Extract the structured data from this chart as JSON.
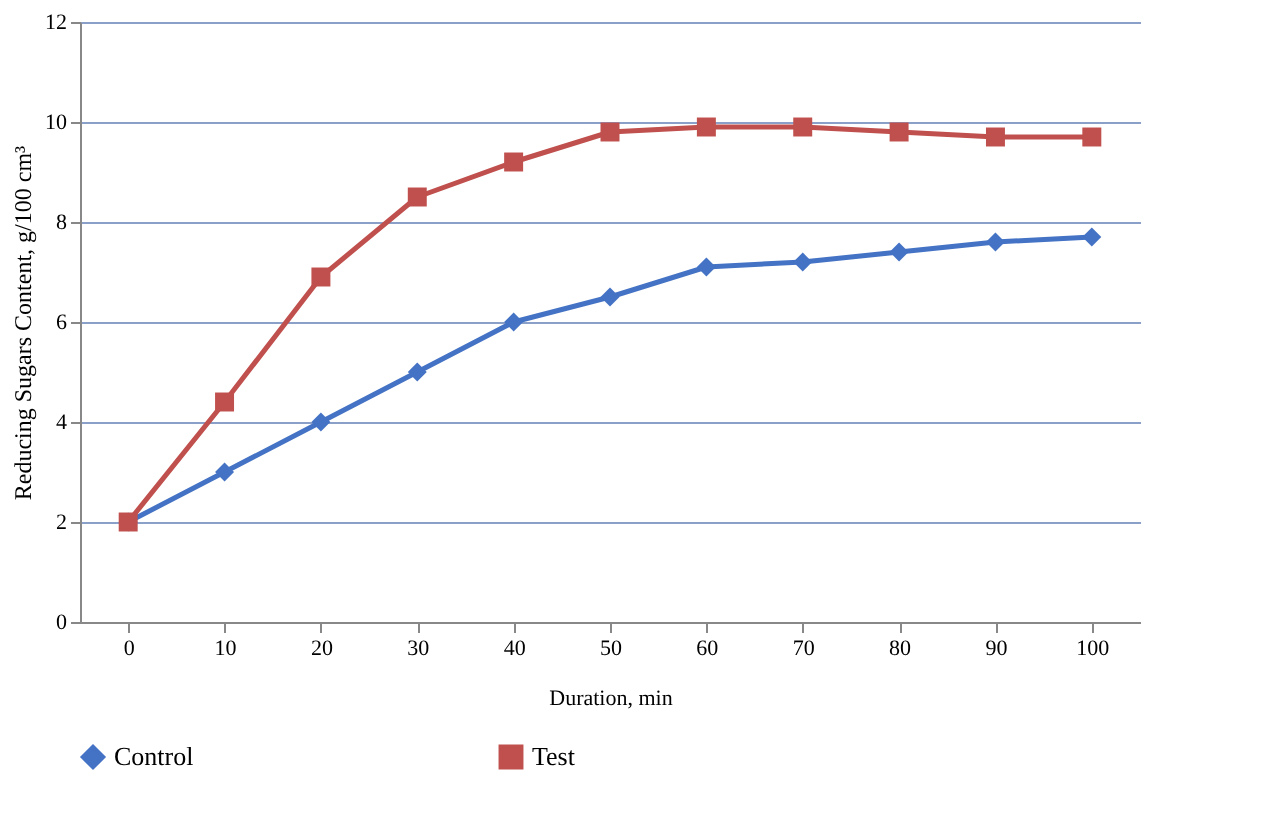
{
  "chart_data": {
    "type": "line",
    "xlabel": "Duration, min",
    "ylabel": "Reducing Sugars Content, g/100 cm³",
    "categories": [
      "0",
      "10",
      "20",
      "30",
      "40",
      "50",
      "60",
      "70",
      "80",
      "90",
      "100"
    ],
    "series": [
      {
        "name": "Control",
        "color": "#4472c4",
        "marker": "diamond",
        "values": [
          2,
          3,
          4,
          5,
          6,
          6.5,
          7.1,
          7.2,
          7.4,
          7.6,
          7.7
        ]
      },
      {
        "name": "Test",
        "color": "#c0504d",
        "marker": "square",
        "values": [
          2,
          4.4,
          6.9,
          8.5,
          9.2,
          9.8,
          9.9,
          9.9,
          9.8,
          9.7,
          9.7
        ]
      }
    ],
    "ylim": [
      0,
      12
    ],
    "yticks": [
      0,
      2,
      4,
      6,
      8,
      10,
      12
    ],
    "grid": "y",
    "legend": "bottom",
    "line_style": "solid"
  }
}
